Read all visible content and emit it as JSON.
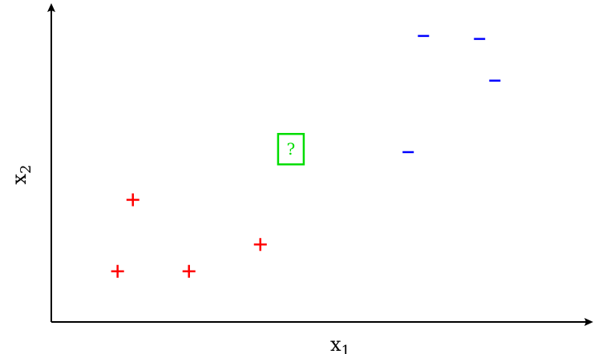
{
  "diagram": {
    "axes": {
      "x_label": "x",
      "x_subscript": "1",
      "y_label": "x",
      "y_subscript": "2",
      "x_range": [
        0,
        10
      ],
      "y_range": [
        0,
        10
      ]
    },
    "colors": {
      "positive": "#ff0000",
      "negative": "#0000ff",
      "query": "#00dd00",
      "axis": "#000000"
    },
    "positive_marker": "+",
    "negative_marker": "−",
    "query_marker": "?",
    "positive_points": [
      {
        "x": 1.6,
        "y": 4.1
      },
      {
        "x": 1.3,
        "y": 1.7
      },
      {
        "x": 2.7,
        "y": 1.7
      },
      {
        "x": 4.1,
        "y": 2.6
      }
    ],
    "negative_points": [
      {
        "x": 7.3,
        "y": 9.6
      },
      {
        "x": 8.4,
        "y": 9.5
      },
      {
        "x": 8.7,
        "y": 8.1
      },
      {
        "x": 7.0,
        "y": 5.7
      }
    ],
    "query_point": {
      "x": 4.7,
      "y": 5.8
    }
  }
}
